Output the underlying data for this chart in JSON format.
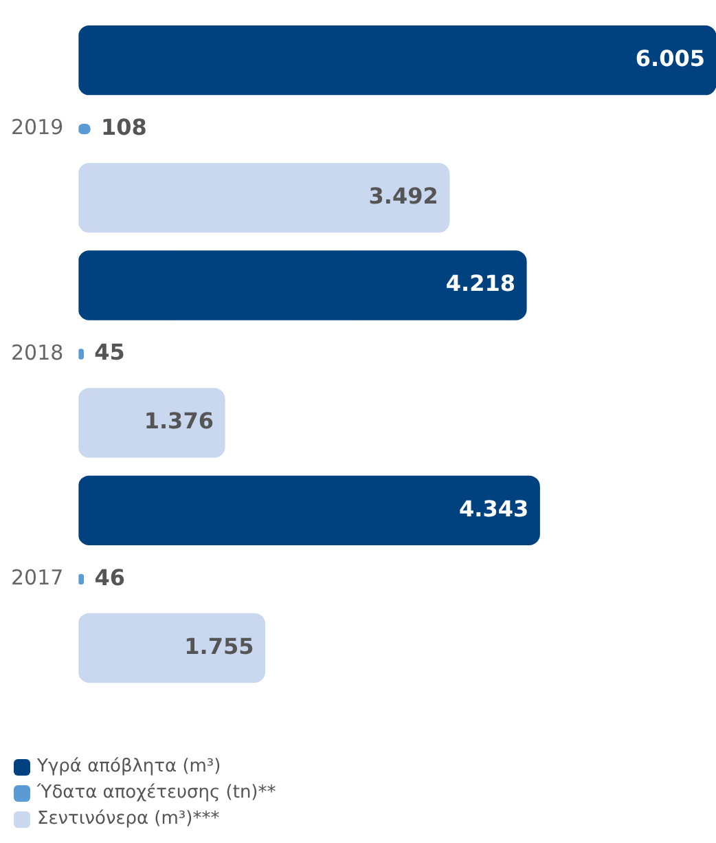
{
  "chart_data": {
    "type": "bar",
    "orientation": "horizontal",
    "categories": [
      "2019",
      "2018",
      "2017"
    ],
    "series": [
      {
        "name": "Υγρά απόβλητα (m³)",
        "color": "#00427f",
        "values": [
          6005,
          4218,
          4343
        ],
        "value_labels": [
          "6.005",
          "4.218",
          "4.343"
        ]
      },
      {
        "name": "Ύδατα αποχέτευσης (tn)**",
        "color": "#5b9bd5",
        "values": [
          108,
          45,
          46
        ],
        "value_labels": [
          "108",
          "45",
          "46"
        ]
      },
      {
        "name": "Σεντινόνερα (m³)***",
        "color": "#c9d8ef",
        "values": [
          3492,
          1376,
          1755
        ],
        "value_labels": [
          "3.492",
          "1.376",
          "1.755"
        ]
      }
    ],
    "xlim": [
      0,
      6005
    ],
    "grid": false,
    "legend": "bottom left",
    "tick_labels": "y"
  }
}
